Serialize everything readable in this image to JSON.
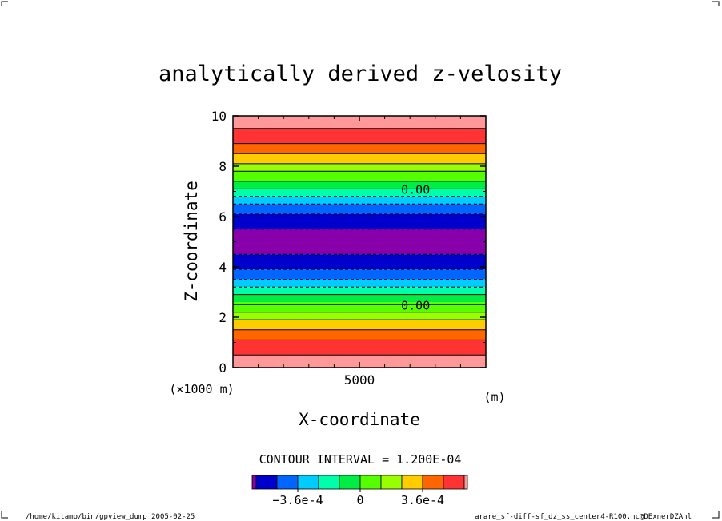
{
  "footer": {
    "left": "/home/kitamo/bin/gpview_dump  2005-02-25",
    "right": "arare_sf-diff-sf_dz_ss_center4-R100.nc@DExnerDZAnl"
  },
  "chart_data": {
    "type": "heatmap",
    "title": "analytically derived z-velosity",
    "xlabel": "X-coordinate",
    "ylabel": "Z-coordinate",
    "x_unit_label": "(m)",
    "x_scale_label": "(×1000 m)",
    "xlim": [
      0,
      10000
    ],
    "ylim": [
      0,
      10
    ],
    "x_ticks": [
      5000
    ],
    "x_tick_labels": [
      "5000"
    ],
    "y_ticks": [
      0,
      2,
      4,
      6,
      8,
      10
    ],
    "y_tick_labels": [
      "0",
      "2",
      "4",
      "6",
      "8",
      "10"
    ],
    "contour_interval_text": "CONTOUR INTERVAL = 1.200E-04",
    "contour_labels": [
      {
        "text": "0.00",
        "z": 7.1,
        "x": 7000
      },
      {
        "text": "0.00",
        "z": 2.5,
        "x": 7000
      }
    ],
    "bands": [
      {
        "z0": 9.5,
        "z1": 10.0,
        "color": "#ff9999"
      },
      {
        "z0": 8.9,
        "z1": 9.5,
        "color": "#ff3333"
      },
      {
        "z0": 8.5,
        "z1": 8.9,
        "color": "#ff6600"
      },
      {
        "z0": 8.1,
        "z1": 8.5,
        "color": "#ffcc00"
      },
      {
        "z0": 7.8,
        "z1": 8.1,
        "color": "#99ff00"
      },
      {
        "z0": 7.4,
        "z1": 7.8,
        "color": "#55ff00"
      },
      {
        "z0": 7.1,
        "z1": 7.4,
        "color": "#00ee44"
      },
      {
        "z0": 6.8,
        "z1": 7.1,
        "color": "#00ffaa"
      },
      {
        "z0": 6.5,
        "z1": 6.8,
        "color": "#00ccff"
      },
      {
        "z0": 6.1,
        "z1": 6.5,
        "color": "#0066ff"
      },
      {
        "z0": 5.5,
        "z1": 6.1,
        "color": "#0000cc"
      },
      {
        "z0": 4.5,
        "z1": 5.5,
        "color": "#8800aa"
      },
      {
        "z0": 3.9,
        "z1": 4.5,
        "color": "#0000cc"
      },
      {
        "z0": 3.5,
        "z1": 3.9,
        "color": "#0066ff"
      },
      {
        "z0": 3.2,
        "z1": 3.5,
        "color": "#00ccff"
      },
      {
        "z0": 2.9,
        "z1": 3.2,
        "color": "#00ffaa"
      },
      {
        "z0": 2.6,
        "z1": 2.9,
        "color": "#00ee44"
      },
      {
        "z0": 2.2,
        "z1": 2.6,
        "color": "#55ff00"
      },
      {
        "z0": 1.9,
        "z1": 2.2,
        "color": "#99ff00"
      },
      {
        "z0": 1.5,
        "z1": 1.9,
        "color": "#ffcc00"
      },
      {
        "z0": 1.1,
        "z1": 1.5,
        "color": "#ff6600"
      },
      {
        "z0": 0.5,
        "z1": 1.1,
        "color": "#ff3333"
      },
      {
        "z0": 0.0,
        "z1": 0.5,
        "color": "#ff9999"
      }
    ],
    "contour_lines": [
      {
        "z": 9.5,
        "dashed": false
      },
      {
        "z": 8.9,
        "dashed": false
      },
      {
        "z": 8.5,
        "dashed": false
      },
      {
        "z": 8.1,
        "dashed": false
      },
      {
        "z": 7.8,
        "dashed": false
      },
      {
        "z": 7.4,
        "dashed": false
      },
      {
        "z": 7.1,
        "dashed": false
      },
      {
        "z": 6.8,
        "dashed": true
      },
      {
        "z": 6.5,
        "dashed": true
      },
      {
        "z": 6.1,
        "dashed": true
      },
      {
        "z": 5.5,
        "dashed": true
      },
      {
        "z": 4.5,
        "dashed": true
      },
      {
        "z": 3.9,
        "dashed": true
      },
      {
        "z": 3.5,
        "dashed": true
      },
      {
        "z": 3.2,
        "dashed": true
      },
      {
        "z": 2.9,
        "dashed": false
      },
      {
        "z": 2.5,
        "dashed": false
      },
      {
        "z": 2.2,
        "dashed": false
      },
      {
        "z": 1.9,
        "dashed": false
      },
      {
        "z": 1.5,
        "dashed": false
      },
      {
        "z": 1.1,
        "dashed": false
      },
      {
        "z": 0.5,
        "dashed": false
      }
    ],
    "colorbar": {
      "colors": [
        "#8800aa",
        "#0000cc",
        "#0066ff",
        "#00ccff",
        "#00ffaa",
        "#00ee44",
        "#55ff00",
        "#99ff00",
        "#ffcc00",
        "#ff6600",
        "#ff3333",
        "#ff9999"
      ],
      "tick_labels": [
        {
          "text": "−3.6e-4",
          "boundary": 3
        },
        {
          "text": "0",
          "boundary": 6
        },
        {
          "text": "3.6e-4",
          "boundary": 9
        }
      ]
    }
  }
}
